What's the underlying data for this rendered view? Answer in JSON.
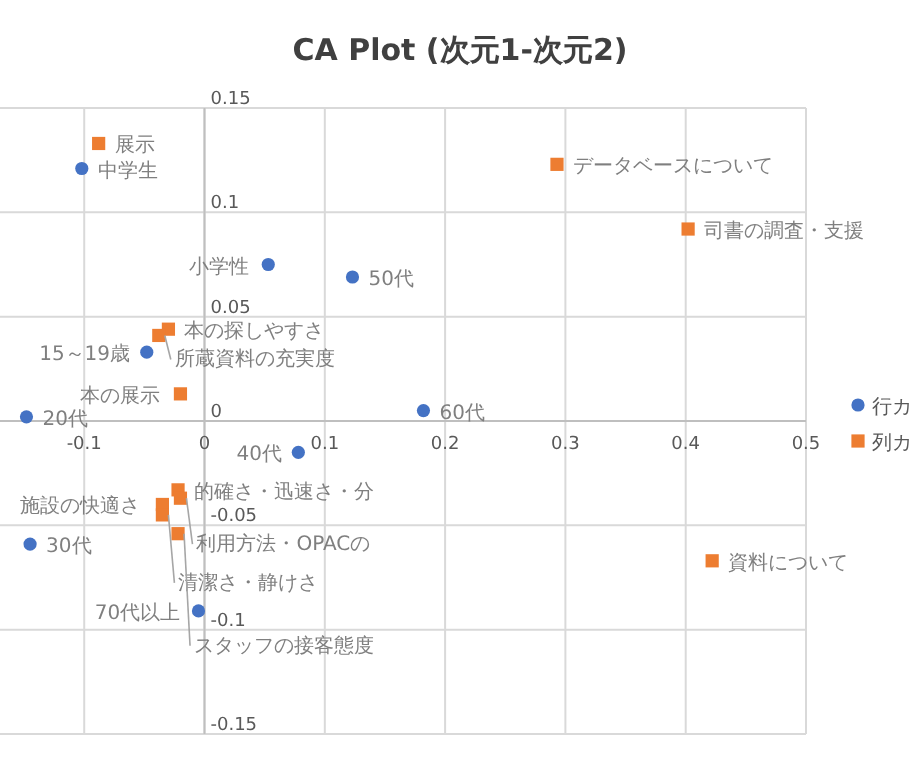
{
  "chart_data": {
    "type": "scatter",
    "title": "CA Plot (次元1-次元2)",
    "series": [
      {
        "name": "行カ",
        "color": "#4472c4",
        "marker": "circle",
        "x": [
          -0.102,
          0.053,
          0.123,
          -0.048,
          -0.148,
          0.182,
          0.078,
          -0.145,
          -0.005
        ],
        "values": [
          0.121,
          0.075,
          0.069,
          0.033,
          0.002,
          0.005,
          -0.015,
          -0.059,
          -0.091
        ]
      },
      {
        "name": "列カ",
        "color": "#ed7d31",
        "marker": "square",
        "x": [
          -0.088,
          0.293,
          0.402,
          -0.03,
          -0.038,
          -0.02,
          -0.022,
          -0.02,
          -0.035,
          -0.035,
          -0.022,
          0.422
        ],
        "values": [
          0.133,
          0.123,
          0.092,
          0.044,
          0.041,
          0.013,
          -0.033,
          -0.037,
          -0.04,
          -0.045,
          -0.054,
          -0.067
        ]
      }
    ],
    "annotations": [
      {
        "text": "中学生",
        "x": -0.102,
        "y": 0.121
      },
      {
        "text": "小学性",
        "x": 0.053,
        "y": 0.075
      },
      {
        "text": "50代",
        "x": 0.123,
        "y": 0.069
      },
      {
        "text": "15～19歳",
        "x": -0.048,
        "y": 0.033
      },
      {
        "text": "20代",
        "x": -0.148,
        "y": 0.002
      },
      {
        "text": "60代",
        "x": 0.182,
        "y": 0.005
      },
      {
        "text": "40代",
        "x": 0.078,
        "y": -0.015
      },
      {
        "text": "30代",
        "x": -0.145,
        "y": -0.059
      },
      {
        "text": "70代以上",
        "x": -0.005,
        "y": -0.091
      },
      {
        "text": "展示",
        "x": -0.088,
        "y": 0.133
      },
      {
        "text": "データベースについて",
        "x": 0.293,
        "y": 0.123
      },
      {
        "text": "司書の調査・支援",
        "x": 0.402,
        "y": 0.092
      },
      {
        "text": "本の探しやすさ",
        "x": -0.03,
        "y": 0.044
      },
      {
        "text": "所蔵資料の充実度",
        "x": -0.038,
        "y": 0.041
      },
      {
        "text": "本の展示",
        "x": -0.02,
        "y": 0.013
      },
      {
        "text": "的確さ・迅速さ・分",
        "x": -0.022,
        "y": -0.033
      },
      {
        "text": "利用方法・OPACの",
        "x": -0.02,
        "y": -0.037
      },
      {
        "text": "施設の快適さ",
        "x": -0.035,
        "y": -0.04
      },
      {
        "text": "清潔さ・静けさ",
        "x": -0.035,
        "y": -0.045
      },
      {
        "text": "スタッフの接客態度",
        "x": -0.022,
        "y": -0.054
      },
      {
        "text": "資料について",
        "x": 0.422,
        "y": -0.067
      }
    ],
    "xlim": [
      -0.17,
      0.5
    ],
    "xticks": [
      -0.1,
      0,
      0.1,
      0.2,
      0.3,
      0.4,
      0.5
    ],
    "ylim": [
      -0.15,
      0.15
    ],
    "yticks": [
      -0.15,
      -0.1,
      -0.05,
      0,
      0.05,
      0.1,
      0.15
    ],
    "grid": true,
    "legend": "right"
  }
}
